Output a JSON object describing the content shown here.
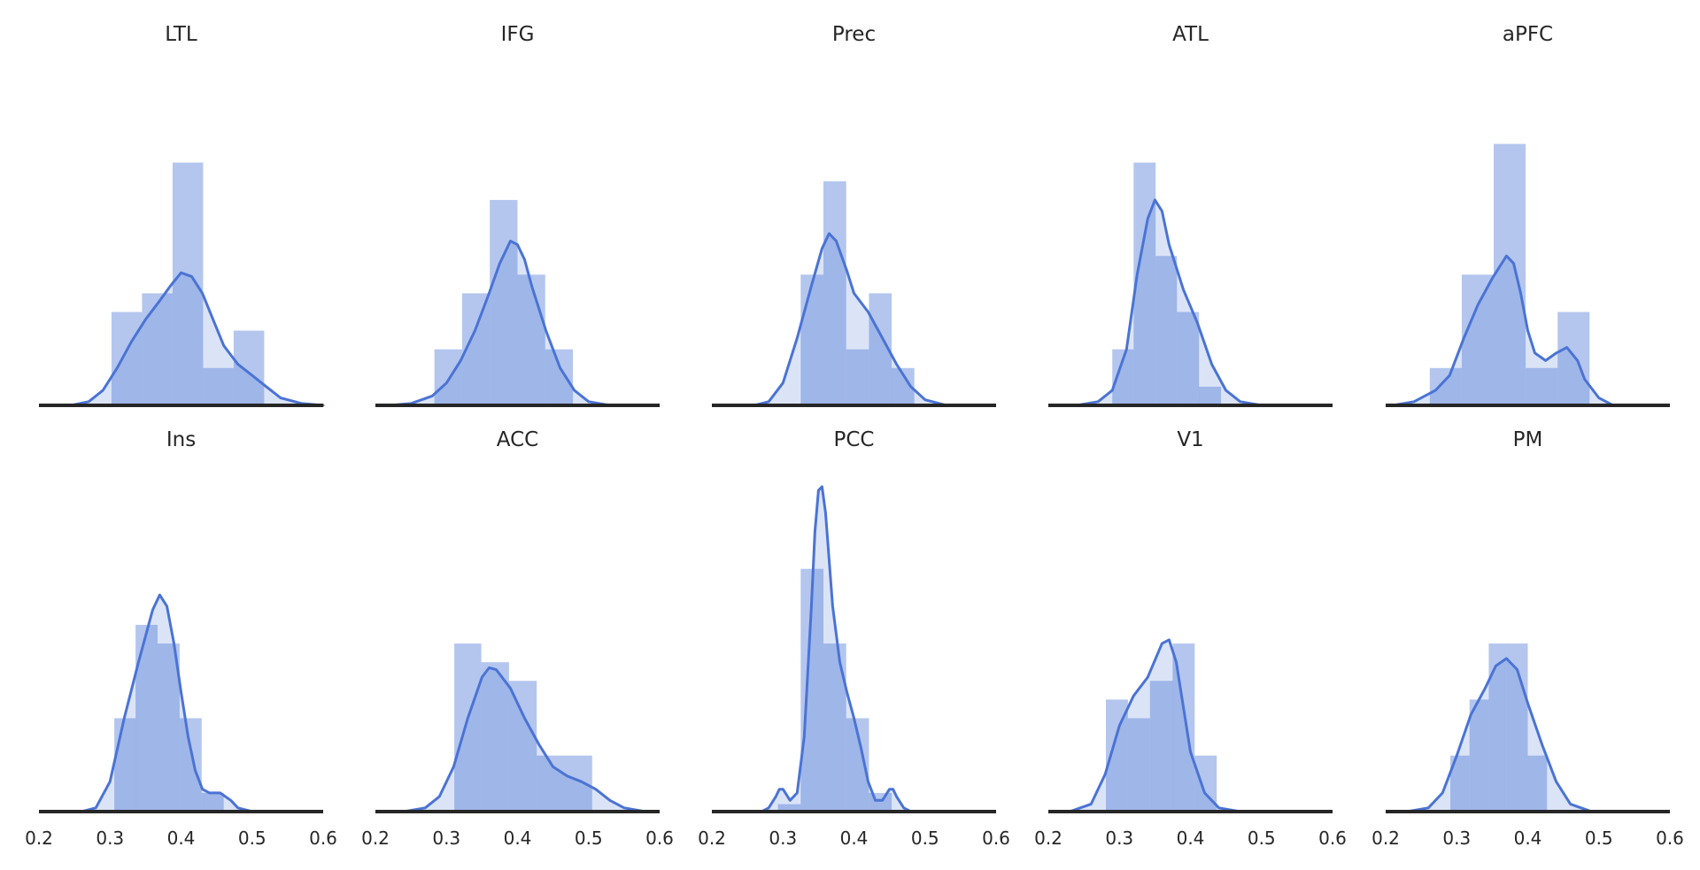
{
  "chart_data": {
    "type": "histogram_kde_grid",
    "rows": 2,
    "cols": 5,
    "xlim": [
      0.2,
      0.6
    ],
    "xticks": [
      "0.2",
      "0.3",
      "0.4",
      "0.5",
      "0.6"
    ],
    "yaxis_visible": false,
    "grid": false,
    "colors": {
      "bar": "#4c78d6",
      "kde": "#4a73d4",
      "axis": "#262626"
    },
    "panels": [
      {
        "title": "LTL",
        "bins": [
          [
            0.302,
            0.345,
            0.25
          ],
          [
            0.345,
            0.388,
            0.3
          ],
          [
            0.388,
            0.431,
            0.65
          ],
          [
            0.431,
            0.474,
            0.1
          ],
          [
            0.474,
            0.517,
            0.2
          ]
        ],
        "kde": [
          [
            0.245,
            0.0
          ],
          [
            0.27,
            0.01
          ],
          [
            0.29,
            0.04
          ],
          [
            0.31,
            0.1
          ],
          [
            0.33,
            0.17
          ],
          [
            0.35,
            0.23
          ],
          [
            0.37,
            0.28
          ],
          [
            0.385,
            0.32
          ],
          [
            0.4,
            0.355
          ],
          [
            0.415,
            0.345
          ],
          [
            0.43,
            0.3
          ],
          [
            0.445,
            0.23
          ],
          [
            0.46,
            0.16
          ],
          [
            0.48,
            0.11
          ],
          [
            0.5,
            0.08
          ],
          [
            0.52,
            0.05
          ],
          [
            0.54,
            0.02
          ],
          [
            0.57,
            0.005
          ],
          [
            0.6,
            0.0
          ]
        ]
      },
      {
        "title": "IFG",
        "bins": [
          [
            0.283,
            0.322,
            0.15
          ],
          [
            0.322,
            0.361,
            0.3
          ],
          [
            0.361,
            0.4,
            0.55
          ],
          [
            0.4,
            0.439,
            0.35
          ],
          [
            0.439,
            0.478,
            0.15
          ]
        ],
        "kde": [
          [
            0.22,
            0.0
          ],
          [
            0.25,
            0.005
          ],
          [
            0.28,
            0.025
          ],
          [
            0.3,
            0.06
          ],
          [
            0.32,
            0.12
          ],
          [
            0.34,
            0.2
          ],
          [
            0.36,
            0.3
          ],
          [
            0.375,
            0.38
          ],
          [
            0.39,
            0.44
          ],
          [
            0.4,
            0.43
          ],
          [
            0.41,
            0.39
          ],
          [
            0.42,
            0.32
          ],
          [
            0.44,
            0.2
          ],
          [
            0.46,
            0.1
          ],
          [
            0.48,
            0.04
          ],
          [
            0.5,
            0.01
          ],
          [
            0.53,
            0.0
          ]
        ]
      },
      {
        "title": "Prec",
        "bins": [
          [
            0.325,
            0.357,
            0.35
          ],
          [
            0.357,
            0.389,
            0.6
          ],
          [
            0.389,
            0.421,
            0.15
          ],
          [
            0.421,
            0.453,
            0.3
          ],
          [
            0.453,
            0.485,
            0.1
          ]
        ],
        "kde": [
          [
            0.26,
            0.0
          ],
          [
            0.28,
            0.01
          ],
          [
            0.3,
            0.06
          ],
          [
            0.32,
            0.18
          ],
          [
            0.34,
            0.32
          ],
          [
            0.355,
            0.42
          ],
          [
            0.365,
            0.46
          ],
          [
            0.375,
            0.44
          ],
          [
            0.39,
            0.36
          ],
          [
            0.4,
            0.3
          ],
          [
            0.42,
            0.25
          ],
          [
            0.44,
            0.18
          ],
          [
            0.46,
            0.11
          ],
          [
            0.48,
            0.05
          ],
          [
            0.5,
            0.015
          ],
          [
            0.53,
            0.0
          ]
        ]
      },
      {
        "title": "ATL",
        "bins": [
          [
            0.29,
            0.32,
            0.15
          ],
          [
            0.32,
            0.351,
            0.65
          ],
          [
            0.351,
            0.381,
            0.4
          ],
          [
            0.381,
            0.412,
            0.25
          ],
          [
            0.412,
            0.443,
            0.05
          ]
        ],
        "kde": [
          [
            0.24,
            0.0
          ],
          [
            0.27,
            0.01
          ],
          [
            0.29,
            0.04
          ],
          [
            0.31,
            0.15
          ],
          [
            0.325,
            0.35
          ],
          [
            0.34,
            0.5
          ],
          [
            0.35,
            0.55
          ],
          [
            0.36,
            0.52
          ],
          [
            0.37,
            0.43
          ],
          [
            0.38,
            0.37
          ],
          [
            0.39,
            0.31
          ],
          [
            0.41,
            0.22
          ],
          [
            0.43,
            0.11
          ],
          [
            0.45,
            0.04
          ],
          [
            0.47,
            0.01
          ],
          [
            0.5,
            0.0
          ]
        ]
      },
      {
        "title": "aPFC",
        "bins": [
          [
            0.262,
            0.307,
            0.1
          ],
          [
            0.307,
            0.352,
            0.35
          ],
          [
            0.352,
            0.397,
            0.7
          ],
          [
            0.397,
            0.442,
            0.1
          ],
          [
            0.442,
            0.487,
            0.25
          ]
        ],
        "kde": [
          [
            0.21,
            0.0
          ],
          [
            0.24,
            0.01
          ],
          [
            0.27,
            0.04
          ],
          [
            0.29,
            0.08
          ],
          [
            0.31,
            0.18
          ],
          [
            0.33,
            0.27
          ],
          [
            0.35,
            0.34
          ],
          [
            0.37,
            0.4
          ],
          [
            0.38,
            0.38
          ],
          [
            0.39,
            0.3
          ],
          [
            0.4,
            0.2
          ],
          [
            0.41,
            0.14
          ],
          [
            0.425,
            0.12
          ],
          [
            0.44,
            0.14
          ],
          [
            0.455,
            0.155
          ],
          [
            0.47,
            0.12
          ],
          [
            0.48,
            0.07
          ],
          [
            0.5,
            0.02
          ],
          [
            0.52,
            0.0
          ]
        ]
      },
      {
        "title": "Ins",
        "bins": [
          [
            0.306,
            0.336,
            0.25
          ],
          [
            0.336,
            0.367,
            0.5
          ],
          [
            0.367,
            0.398,
            0.45
          ],
          [
            0.398,
            0.429,
            0.25
          ],
          [
            0.429,
            0.46,
            0.05
          ]
        ],
        "kde": [
          [
            0.26,
            0.0
          ],
          [
            0.28,
            0.01
          ],
          [
            0.3,
            0.08
          ],
          [
            0.32,
            0.25
          ],
          [
            0.34,
            0.4
          ],
          [
            0.36,
            0.54
          ],
          [
            0.37,
            0.58
          ],
          [
            0.38,
            0.55
          ],
          [
            0.39,
            0.45
          ],
          [
            0.4,
            0.32
          ],
          [
            0.41,
            0.2
          ],
          [
            0.42,
            0.11
          ],
          [
            0.43,
            0.06
          ],
          [
            0.44,
            0.05
          ],
          [
            0.455,
            0.05
          ],
          [
            0.47,
            0.03
          ],
          [
            0.48,
            0.01
          ],
          [
            0.5,
            0.0
          ]
        ]
      },
      {
        "title": "ACC",
        "bins": [
          [
            0.311,
            0.349,
            0.45
          ],
          [
            0.349,
            0.388,
            0.4
          ],
          [
            0.388,
            0.427,
            0.35
          ],
          [
            0.427,
            0.466,
            0.15
          ],
          [
            0.466,
            0.505,
            0.15
          ]
        ],
        "kde": [
          [
            0.24,
            0.0
          ],
          [
            0.27,
            0.01
          ],
          [
            0.29,
            0.04
          ],
          [
            0.31,
            0.12
          ],
          [
            0.33,
            0.25
          ],
          [
            0.35,
            0.36
          ],
          [
            0.36,
            0.385
          ],
          [
            0.37,
            0.38
          ],
          [
            0.39,
            0.33
          ],
          [
            0.41,
            0.25
          ],
          [
            0.43,
            0.18
          ],
          [
            0.45,
            0.12
          ],
          [
            0.47,
            0.095
          ],
          [
            0.49,
            0.08
          ],
          [
            0.51,
            0.06
          ],
          [
            0.53,
            0.03
          ],
          [
            0.55,
            0.01
          ],
          [
            0.58,
            0.0
          ]
        ]
      },
      {
        "title": "PCC",
        "bins": [
          [
            0.293,
            0.325,
            0.02
          ],
          [
            0.325,
            0.357,
            0.65
          ],
          [
            0.357,
            0.389,
            0.45
          ],
          [
            0.389,
            0.421,
            0.25
          ],
          [
            0.421,
            0.453,
            0.05
          ]
        ],
        "kde": [
          [
            0.27,
            0.0
          ],
          [
            0.28,
            0.01
          ],
          [
            0.29,
            0.04
          ],
          [
            0.295,
            0.06
          ],
          [
            0.3,
            0.06
          ],
          [
            0.31,
            0.03
          ],
          [
            0.32,
            0.05
          ],
          [
            0.33,
            0.2
          ],
          [
            0.34,
            0.55
          ],
          [
            0.345,
            0.75
          ],
          [
            0.35,
            0.86
          ],
          [
            0.355,
            0.87
          ],
          [
            0.36,
            0.8
          ],
          [
            0.37,
            0.55
          ],
          [
            0.38,
            0.4
          ],
          [
            0.39,
            0.32
          ],
          [
            0.4,
            0.25
          ],
          [
            0.41,
            0.17
          ],
          [
            0.42,
            0.08
          ],
          [
            0.43,
            0.03
          ],
          [
            0.44,
            0.03
          ],
          [
            0.45,
            0.06
          ],
          [
            0.455,
            0.06
          ],
          [
            0.46,
            0.04
          ],
          [
            0.47,
            0.01
          ],
          [
            0.48,
            0.0
          ]
        ]
      },
      {
        "title": "V1",
        "bins": [
          [
            0.281,
            0.312,
            0.3
          ],
          [
            0.312,
            0.343,
            0.25
          ],
          [
            0.343,
            0.375,
            0.35
          ],
          [
            0.375,
            0.406,
            0.45
          ],
          [
            0.406,
            0.437,
            0.15
          ]
        ],
        "kde": [
          [
            0.23,
            0.0
          ],
          [
            0.26,
            0.02
          ],
          [
            0.28,
            0.1
          ],
          [
            0.3,
            0.23
          ],
          [
            0.32,
            0.31
          ],
          [
            0.34,
            0.36
          ],
          [
            0.36,
            0.45
          ],
          [
            0.37,
            0.46
          ],
          [
            0.38,
            0.4
          ],
          [
            0.39,
            0.28
          ],
          [
            0.4,
            0.16
          ],
          [
            0.42,
            0.05
          ],
          [
            0.44,
            0.01
          ],
          [
            0.47,
            0.0
          ]
        ]
      },
      {
        "title": "PM",
        "bins": [
          [
            0.291,
            0.318,
            0.15
          ],
          [
            0.318,
            0.345,
            0.3
          ],
          [
            0.345,
            0.373,
            0.45
          ],
          [
            0.373,
            0.4,
            0.45
          ],
          [
            0.4,
            0.427,
            0.15
          ]
        ],
        "kde": [
          [
            0.23,
            0.0
          ],
          [
            0.26,
            0.01
          ],
          [
            0.28,
            0.05
          ],
          [
            0.3,
            0.15
          ],
          [
            0.32,
            0.26
          ],
          [
            0.34,
            0.33
          ],
          [
            0.355,
            0.39
          ],
          [
            0.37,
            0.41
          ],
          [
            0.385,
            0.38
          ],
          [
            0.4,
            0.29
          ],
          [
            0.42,
            0.18
          ],
          [
            0.44,
            0.08
          ],
          [
            0.46,
            0.02
          ],
          [
            0.49,
            0.0
          ]
        ]
      }
    ]
  }
}
